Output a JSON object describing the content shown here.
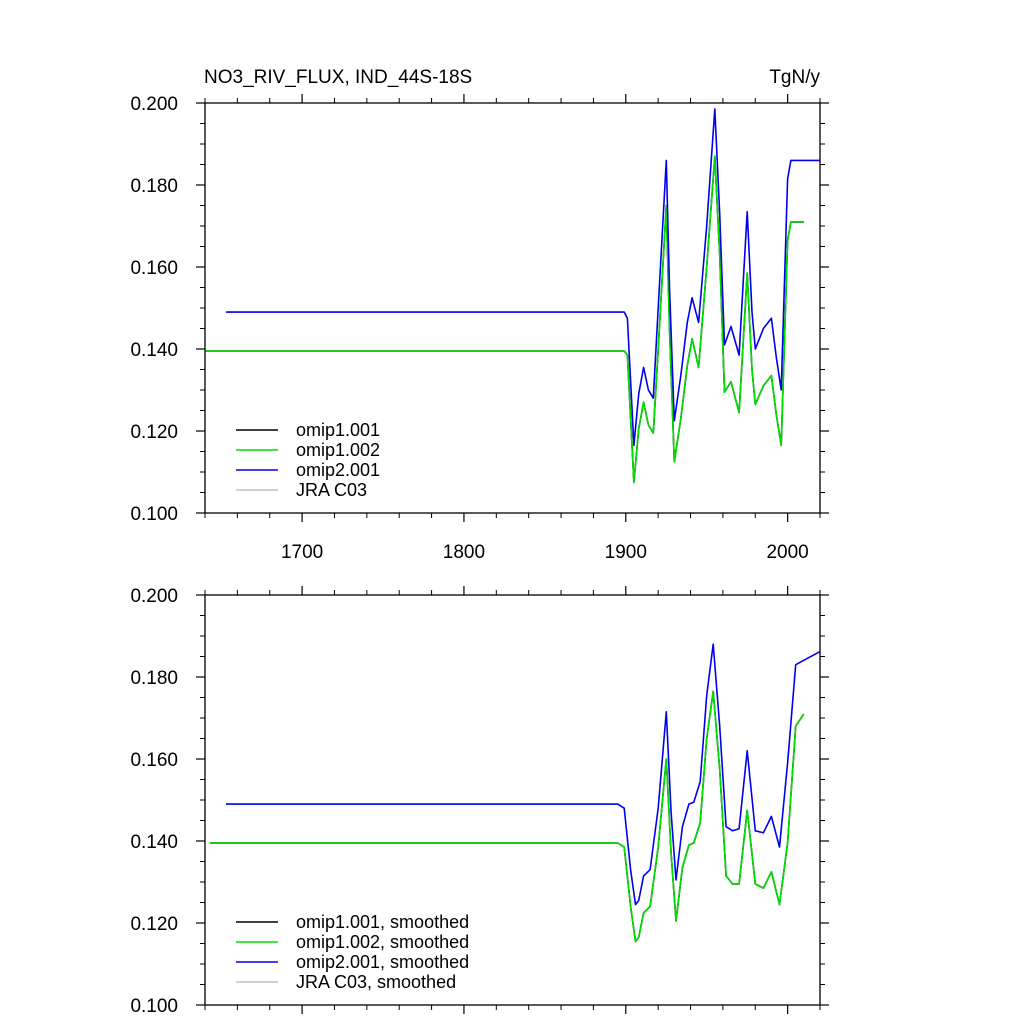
{
  "colors": {
    "omip1_001": "#000000",
    "omip1_002": "#00dd00",
    "omip2_001": "#0000ee",
    "jra_c03": "#c0c0c0"
  },
  "chart_data": [
    {
      "type": "line",
      "title": "NO3_RIV_FLUX, IND_44S-18S",
      "units": "TgN/y",
      "xlim": [
        1640,
        2020
      ],
      "ylim": [
        0.1,
        0.2
      ],
      "x_ticks": [
        1700,
        1800,
        1900,
        2000
      ],
      "x_tick_labels": [
        "1700",
        "1800",
        "1900",
        "2000"
      ],
      "y_ticks": [
        0.1,
        0.12,
        0.14,
        0.16,
        0.18,
        0.2
      ],
      "y_tick_labels": [
        "0.100",
        "0.120",
        "0.140",
        "0.160",
        "0.180",
        "0.200"
      ],
      "legend_position": "bottom-left",
      "series": [
        {
          "name": "omip1.001",
          "color_key": "omip1_001",
          "x": [
            1640,
            1899,
            1901,
            1905,
            1908,
            1911,
            1914,
            1917,
            1920,
            1925,
            1927,
            1930,
            1934,
            1938,
            1941,
            1945,
            1950,
            1955,
            1958,
            1961,
            1965,
            1970,
            1975,
            1978,
            1980,
            1985,
            1990,
            1993,
            1996,
            2000,
            2002,
            2010
          ],
          "y": [
            0.1395,
            0.1395,
            0.1385,
            0.1075,
            0.1205,
            0.127,
            0.1215,
            0.1195,
            0.14,
            0.175,
            0.145,
            0.1125,
            0.123,
            0.136,
            0.1425,
            0.1355,
            0.16,
            0.187,
            0.163,
            0.1295,
            0.132,
            0.1245,
            0.1585,
            0.135,
            0.1265,
            0.131,
            0.1335,
            0.124,
            0.1165,
            0.1665,
            0.171,
            0.171
          ]
        },
        {
          "name": "omip1.002",
          "color_key": "omip1_002",
          "x": [
            1640,
            1899,
            1901,
            1905,
            1908,
            1911,
            1914,
            1917,
            1920,
            1925,
            1927,
            1930,
            1934,
            1938,
            1941,
            1945,
            1950,
            1955,
            1958,
            1961,
            1965,
            1970,
            1975,
            1978,
            1980,
            1985,
            1990,
            1993,
            1996,
            2000,
            2002,
            2010
          ],
          "y": [
            0.1395,
            0.1395,
            0.1385,
            0.1075,
            0.1205,
            0.127,
            0.1215,
            0.1195,
            0.14,
            0.175,
            0.145,
            0.1125,
            0.123,
            0.136,
            0.1425,
            0.1355,
            0.16,
            0.187,
            0.163,
            0.1295,
            0.132,
            0.1245,
            0.1585,
            0.135,
            0.1265,
            0.131,
            0.1335,
            0.124,
            0.1165,
            0.1665,
            0.171,
            0.171
          ]
        },
        {
          "name": "omip2.001",
          "color_key": "omip2_001",
          "x": [
            1653,
            1899,
            1901,
            1905,
            1908,
            1911,
            1914,
            1917,
            1920,
            1925,
            1927,
            1930,
            1934,
            1938,
            1941,
            1945,
            1950,
            1955,
            1958,
            1961,
            1965,
            1970,
            1975,
            1978,
            1980,
            1985,
            1990,
            1993,
            1996,
            2000,
            2002,
            2020
          ],
          "y": [
            0.149,
            0.149,
            0.1475,
            0.1165,
            0.129,
            0.1355,
            0.13,
            0.128,
            0.15,
            0.186,
            0.155,
            0.1225,
            0.1335,
            0.1465,
            0.1525,
            0.1465,
            0.17,
            0.1985,
            0.173,
            0.141,
            0.1455,
            0.1385,
            0.1735,
            0.149,
            0.14,
            0.145,
            0.1475,
            0.138,
            0.13,
            0.1815,
            0.186,
            0.186
          ]
        },
        {
          "name": "JRA C03",
          "color_key": "jra_c03",
          "x": [],
          "y": []
        }
      ]
    },
    {
      "type": "line",
      "xlim": [
        1640,
        2020
      ],
      "ylim": [
        0.1,
        0.2
      ],
      "x_ticks": [
        1700,
        1800,
        1900,
        2000
      ],
      "y_ticks": [
        0.1,
        0.12,
        0.14,
        0.16,
        0.18,
        0.2
      ],
      "y_tick_labels": [
        "0.100",
        "0.120",
        "0.140",
        "0.160",
        "0.180",
        "0.200"
      ],
      "legend_position": "bottom-left",
      "series": [
        {
          "name": "omip1.001, smoothed",
          "color_key": "omip1_001",
          "x": [
            1643,
            1895,
            1899,
            1903,
            1906,
            1908,
            1911,
            1915,
            1920,
            1925,
            1928,
            1931,
            1935,
            1939,
            1942,
            1946,
            1950,
            1954,
            1958,
            1962,
            1966,
            1970,
            1975,
            1980,
            1985,
            1990,
            1995,
            2000,
            2005,
            2010
          ],
          "y": [
            0.1395,
            0.1395,
            0.1385,
            0.124,
            0.1155,
            0.1165,
            0.1225,
            0.124,
            0.1385,
            0.16,
            0.137,
            0.1205,
            0.1335,
            0.139,
            0.1395,
            0.1445,
            0.165,
            0.1765,
            0.1575,
            0.1315,
            0.1295,
            0.1295,
            0.1475,
            0.1295,
            0.1285,
            0.1325,
            0.1245,
            0.1395,
            0.168,
            0.171
          ]
        },
        {
          "name": "omip1.002, smoothed",
          "color_key": "omip1_002",
          "x": [
            1643,
            1895,
            1899,
            1903,
            1906,
            1908,
            1911,
            1915,
            1920,
            1925,
            1928,
            1931,
            1935,
            1939,
            1942,
            1946,
            1950,
            1954,
            1958,
            1962,
            1966,
            1970,
            1975,
            1980,
            1985,
            1990,
            1995,
            2000,
            2005,
            2010
          ],
          "y": [
            0.1395,
            0.1395,
            0.1385,
            0.124,
            0.1155,
            0.1165,
            0.1225,
            0.124,
            0.1385,
            0.16,
            0.137,
            0.1205,
            0.1335,
            0.139,
            0.1395,
            0.1445,
            0.165,
            0.1765,
            0.1575,
            0.1315,
            0.1295,
            0.1295,
            0.1475,
            0.1295,
            0.1285,
            0.1325,
            0.1245,
            0.1395,
            0.168,
            0.171
          ]
        },
        {
          "name": "omip2.001, smoothed",
          "color_key": "omip2_001",
          "x": [
            1653,
            1895,
            1899,
            1903,
            1906,
            1908,
            1911,
            1915,
            1920,
            1925,
            1928,
            1931,
            1935,
            1939,
            1942,
            1946,
            1950,
            1954,
            1958,
            1962,
            1966,
            1970,
            1975,
            1980,
            1985,
            1990,
            1995,
            2000,
            2005,
            2020
          ],
          "y": [
            0.149,
            0.149,
            0.148,
            0.133,
            0.1245,
            0.1255,
            0.1315,
            0.133,
            0.148,
            0.1715,
            0.147,
            0.1305,
            0.1435,
            0.149,
            0.1495,
            0.1545,
            0.1755,
            0.188,
            0.168,
            0.1435,
            0.1425,
            0.143,
            0.162,
            0.1425,
            0.142,
            0.146,
            0.1385,
            0.159,
            0.183,
            0.1862
          ]
        },
        {
          "name": "JRA C03, smoothed",
          "color_key": "jra_c03",
          "x": [],
          "y": []
        }
      ]
    }
  ]
}
